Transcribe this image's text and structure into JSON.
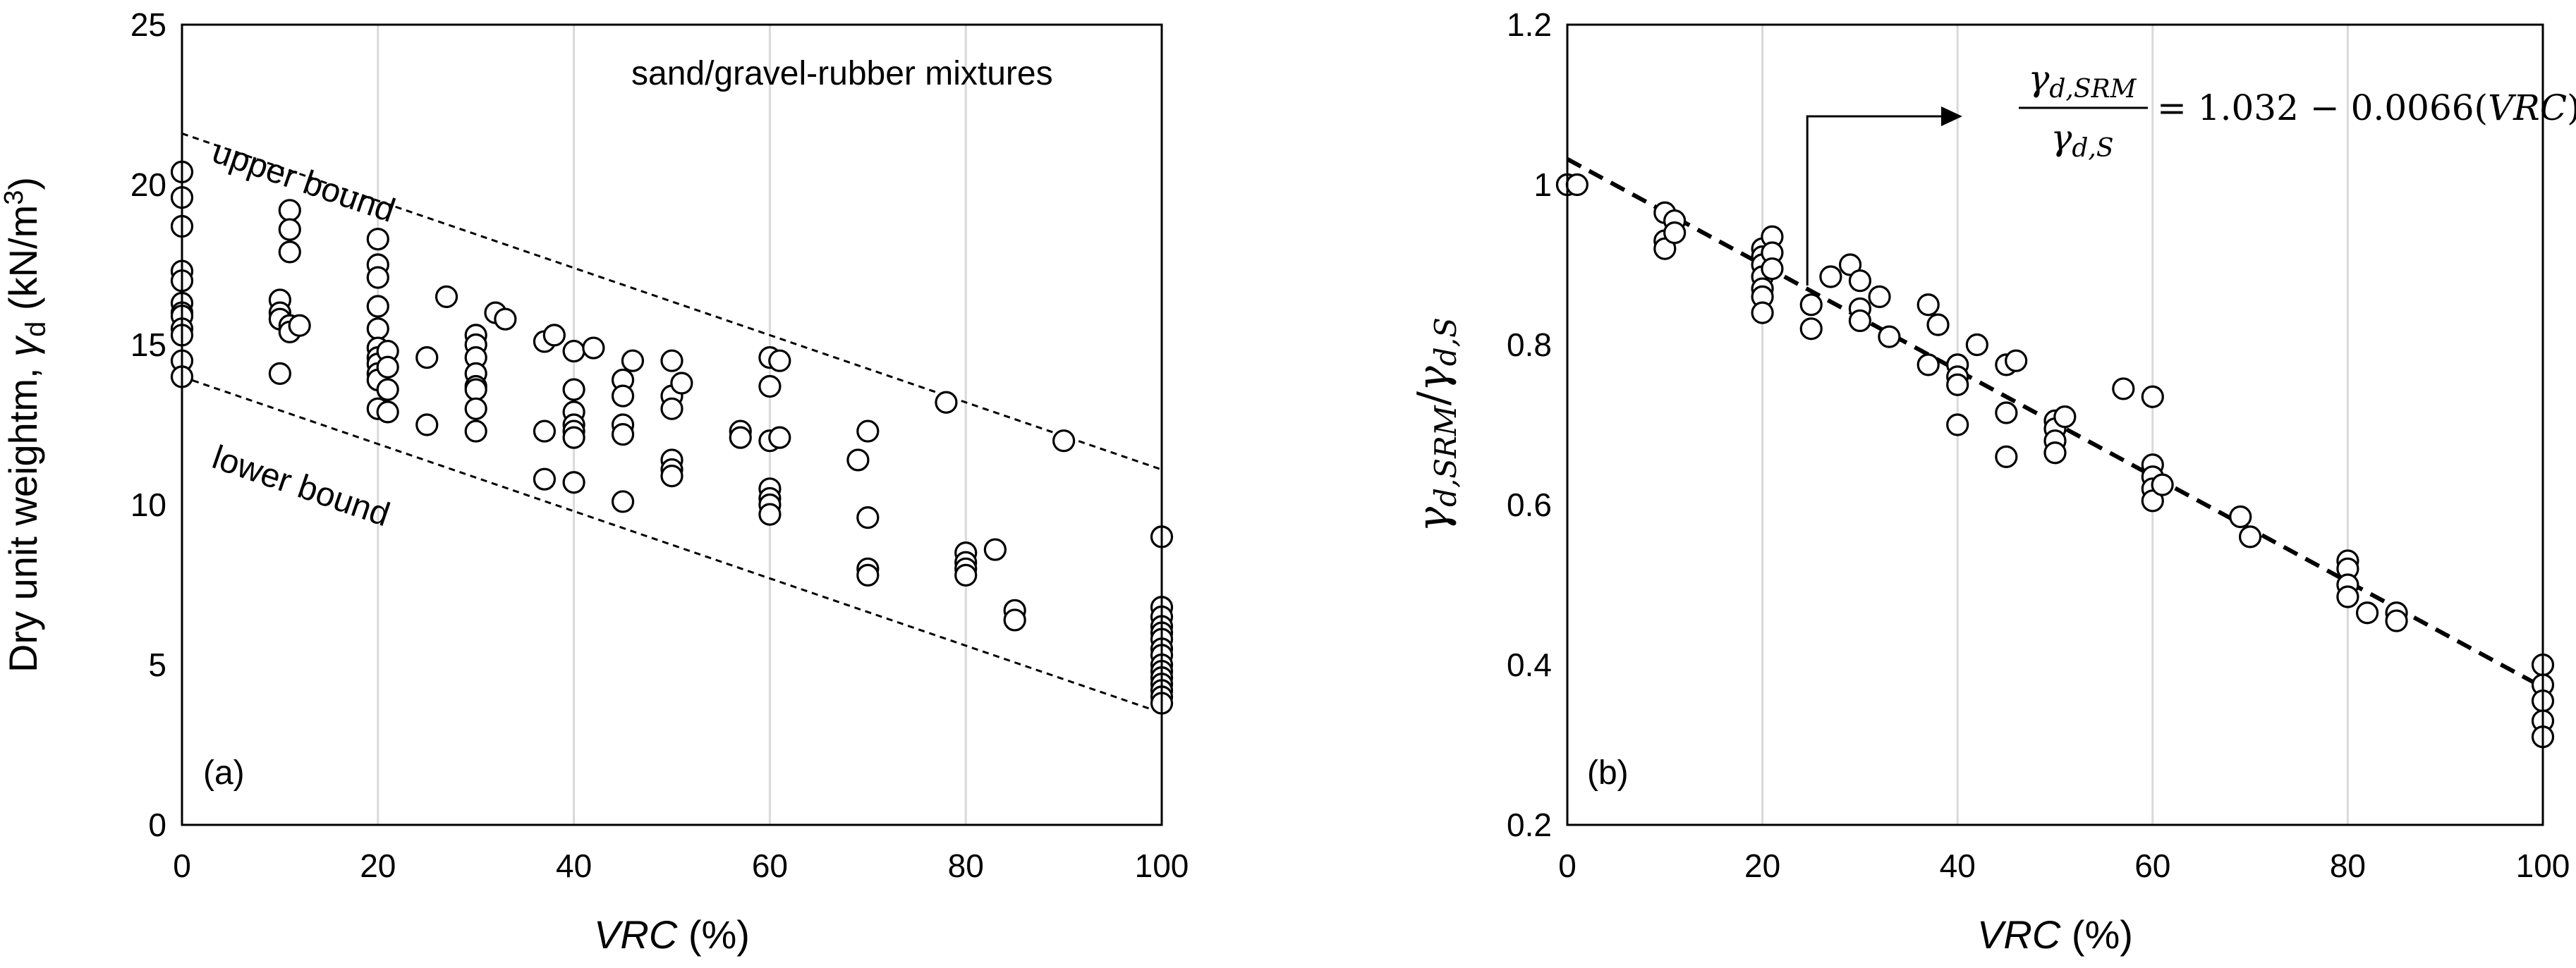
{
  "chart_data": [
    {
      "type": "scatter",
      "panel_label": "(a)",
      "annotation": "sand/gravel-rubber mixtures",
      "xlabel": {
        "main": "VRC",
        "unit": " (%)"
      },
      "ylabel": {
        "prefix": "Dry unit weightm, ",
        "symbol": "γ",
        "sub": "d",
        "unit": " (kN/m",
        "sup": "3",
        "close": ")"
      },
      "xlim": [
        0,
        100
      ],
      "ylim": [
        0,
        25
      ],
      "xticks": [
        0,
        20,
        40,
        60,
        80,
        100
      ],
      "yticks": [
        0,
        5,
        10,
        15,
        20,
        25
      ],
      "grid": "vertical",
      "bounds": [
        {
          "label": "upper bound",
          "x": [
            0,
            100
          ],
          "y": [
            21.6,
            11.1
          ]
        },
        {
          "label": "lower bound",
          "x": [
            0,
            100
          ],
          "y": [
            14.0,
            3.5
          ]
        }
      ],
      "points": [
        [
          0,
          20.4
        ],
        [
          0,
          19.6
        ],
        [
          0,
          18.7
        ],
        [
          0,
          17.3
        ],
        [
          0,
          17.0
        ],
        [
          0,
          16.3
        ],
        [
          0,
          16.0
        ],
        [
          0,
          15.9
        ],
        [
          0,
          15.5
        ],
        [
          0,
          15.3
        ],
        [
          0,
          14.5
        ],
        [
          0,
          14.0
        ],
        [
          10,
          16.4
        ],
        [
          10,
          16.0
        ],
        [
          10,
          15.8
        ],
        [
          10,
          14.1
        ],
        [
          11,
          19.2
        ],
        [
          11,
          18.6
        ],
        [
          11,
          17.9
        ],
        [
          11,
          15.6
        ],
        [
          11,
          15.4
        ],
        [
          12,
          15.6
        ],
        [
          20,
          18.3
        ],
        [
          20,
          17.5
        ],
        [
          20,
          17.1
        ],
        [
          20,
          16.2
        ],
        [
          20,
          15.5
        ],
        [
          20,
          14.9
        ],
        [
          20,
          14.6
        ],
        [
          20,
          14.4
        ],
        [
          20,
          14.1
        ],
        [
          20,
          13.9
        ],
        [
          20,
          13.0
        ],
        [
          21,
          14.8
        ],
        [
          21,
          14.3
        ],
        [
          21,
          13.6
        ],
        [
          21,
          12.9
        ],
        [
          25,
          14.6
        ],
        [
          25,
          12.5
        ],
        [
          27,
          16.5
        ],
        [
          30,
          15.3
        ],
        [
          30,
          15.0
        ],
        [
          30,
          14.6
        ],
        [
          30,
          14.1
        ],
        [
          30,
          13.7
        ],
        [
          30,
          13.6
        ],
        [
          30,
          13.0
        ],
        [
          30,
          12.3
        ],
        [
          32,
          16.0
        ],
        [
          33,
          15.8
        ],
        [
          37,
          15.1
        ],
        [
          37,
          12.3
        ],
        [
          37,
          10.8
        ],
        [
          38,
          15.3
        ],
        [
          40,
          14.8
        ],
        [
          40,
          13.6
        ],
        [
          40,
          12.9
        ],
        [
          40,
          12.5
        ],
        [
          40,
          12.3
        ],
        [
          40,
          12.1
        ],
        [
          40,
          10.7
        ],
        [
          42,
          14.9
        ],
        [
          45,
          13.9
        ],
        [
          45,
          13.4
        ],
        [
          45,
          12.5
        ],
        [
          45,
          12.2
        ],
        [
          45,
          10.1
        ],
        [
          46,
          14.5
        ],
        [
          50,
          14.5
        ],
        [
          50,
          13.4
        ],
        [
          50,
          13.0
        ],
        [
          50,
          11.4
        ],
        [
          50,
          11.1
        ],
        [
          50,
          10.9
        ],
        [
          51,
          13.8
        ],
        [
          57,
          12.3
        ],
        [
          57,
          12.1
        ],
        [
          60,
          14.6
        ],
        [
          60,
          13.7
        ],
        [
          60,
          12.0
        ],
        [
          60,
          10.5
        ],
        [
          60,
          10.2
        ],
        [
          60,
          10.0
        ],
        [
          60,
          9.7
        ],
        [
          61,
          14.5
        ],
        [
          61,
          12.1
        ],
        [
          69,
          11.4
        ],
        [
          70,
          12.3
        ],
        [
          70,
          9.6
        ],
        [
          70,
          8.0
        ],
        [
          70,
          7.8
        ],
        [
          78,
          13.2
        ],
        [
          80,
          8.5
        ],
        [
          80,
          8.2
        ],
        [
          80,
          8.0
        ],
        [
          80,
          7.8
        ],
        [
          83,
          8.6
        ],
        [
          85,
          6.7
        ],
        [
          85,
          6.4
        ],
        [
          90,
          12.0
        ],
        [
          100,
          9.0
        ],
        [
          100,
          6.8
        ],
        [
          100,
          6.5
        ],
        [
          100,
          6.2
        ],
        [
          100,
          6.0
        ],
        [
          100,
          5.8
        ],
        [
          100,
          5.5
        ],
        [
          100,
          5.3
        ],
        [
          100,
          5.0
        ],
        [
          100,
          4.8
        ],
        [
          100,
          4.6
        ],
        [
          100,
          4.4
        ],
        [
          100,
          4.2
        ],
        [
          100,
          4.0
        ],
        [
          100,
          3.8
        ]
      ]
    },
    {
      "type": "scatter",
      "panel_label": "(b)",
      "equation": {
        "num": "γ",
        "num_sub": "d,SRM",
        "den": "γ",
        "den_sub": "d,S",
        "rhs": "= 1.032 − 0.0066(",
        "rhs_var": "VRC",
        "rhs_close": ")"
      },
      "xlabel": {
        "main": "VRC",
        "unit": " (%)"
      },
      "ylabel": {
        "a": "γ",
        "a_sub": "d,SRM",
        "slash": "/",
        "b": "γ",
        "b_sub": "d,S"
      },
      "xlim": [
        0,
        100
      ],
      "ylim": [
        0.2,
        1.2
      ],
      "xticks": [
        0,
        20,
        40,
        60,
        80,
        100
      ],
      "yticks": [
        "0.2",
        "0.4",
        "0.6",
        "0.8",
        "1",
        "1.2"
      ],
      "grid": "vertical",
      "fit": {
        "x": [
          0,
          100
        ],
        "y": [
          1.032,
          0.372
        ]
      },
      "points": [
        [
          0,
          1.0
        ],
        [
          0,
          1.0
        ],
        [
          1,
          1.0
        ],
        [
          10,
          0.965
        ],
        [
          10,
          0.93
        ],
        [
          10,
          0.92
        ],
        [
          11,
          0.955
        ],
        [
          11,
          0.94
        ],
        [
          20,
          0.92
        ],
        [
          20,
          0.91
        ],
        [
          20,
          0.9
        ],
        [
          20,
          0.885
        ],
        [
          20,
          0.87
        ],
        [
          20,
          0.86
        ],
        [
          20,
          0.84
        ],
        [
          21,
          0.935
        ],
        [
          21,
          0.915
        ],
        [
          21,
          0.895
        ],
        [
          25,
          0.85
        ],
        [
          25,
          0.82
        ],
        [
          27,
          0.885
        ],
        [
          29,
          0.9
        ],
        [
          30,
          0.88
        ],
        [
          30,
          0.845
        ],
        [
          30,
          0.83
        ],
        [
          32,
          0.86
        ],
        [
          33,
          0.81
        ],
        [
          37,
          0.85
        ],
        [
          37,
          0.775
        ],
        [
          38,
          0.825
        ],
        [
          40,
          0.775
        ],
        [
          40,
          0.76
        ],
        [
          40,
          0.75
        ],
        [
          40,
          0.7
        ],
        [
          42,
          0.8
        ],
        [
          45,
          0.775
        ],
        [
          45,
          0.715
        ],
        [
          45,
          0.66
        ],
        [
          46,
          0.78
        ],
        [
          50,
          0.705
        ],
        [
          50,
          0.695
        ],
        [
          50,
          0.68
        ],
        [
          50,
          0.665
        ],
        [
          51,
          0.71
        ],
        [
          57,
          0.745
        ],
        [
          60,
          0.735
        ],
        [
          60,
          0.65
        ],
        [
          60,
          0.635
        ],
        [
          60,
          0.62
        ],
        [
          60,
          0.605
        ],
        [
          61,
          0.625
        ],
        [
          69,
          0.585
        ],
        [
          70,
          0.56
        ],
        [
          80,
          0.53
        ],
        [
          80,
          0.52
        ],
        [
          80,
          0.5
        ],
        [
          80,
          0.485
        ],
        [
          82,
          0.465
        ],
        [
          85,
          0.465
        ],
        [
          85,
          0.455
        ],
        [
          100,
          0.4
        ],
        [
          100,
          0.375
        ],
        [
          100,
          0.355
        ],
        [
          100,
          0.33
        ],
        [
          100,
          0.31
        ]
      ]
    }
  ]
}
